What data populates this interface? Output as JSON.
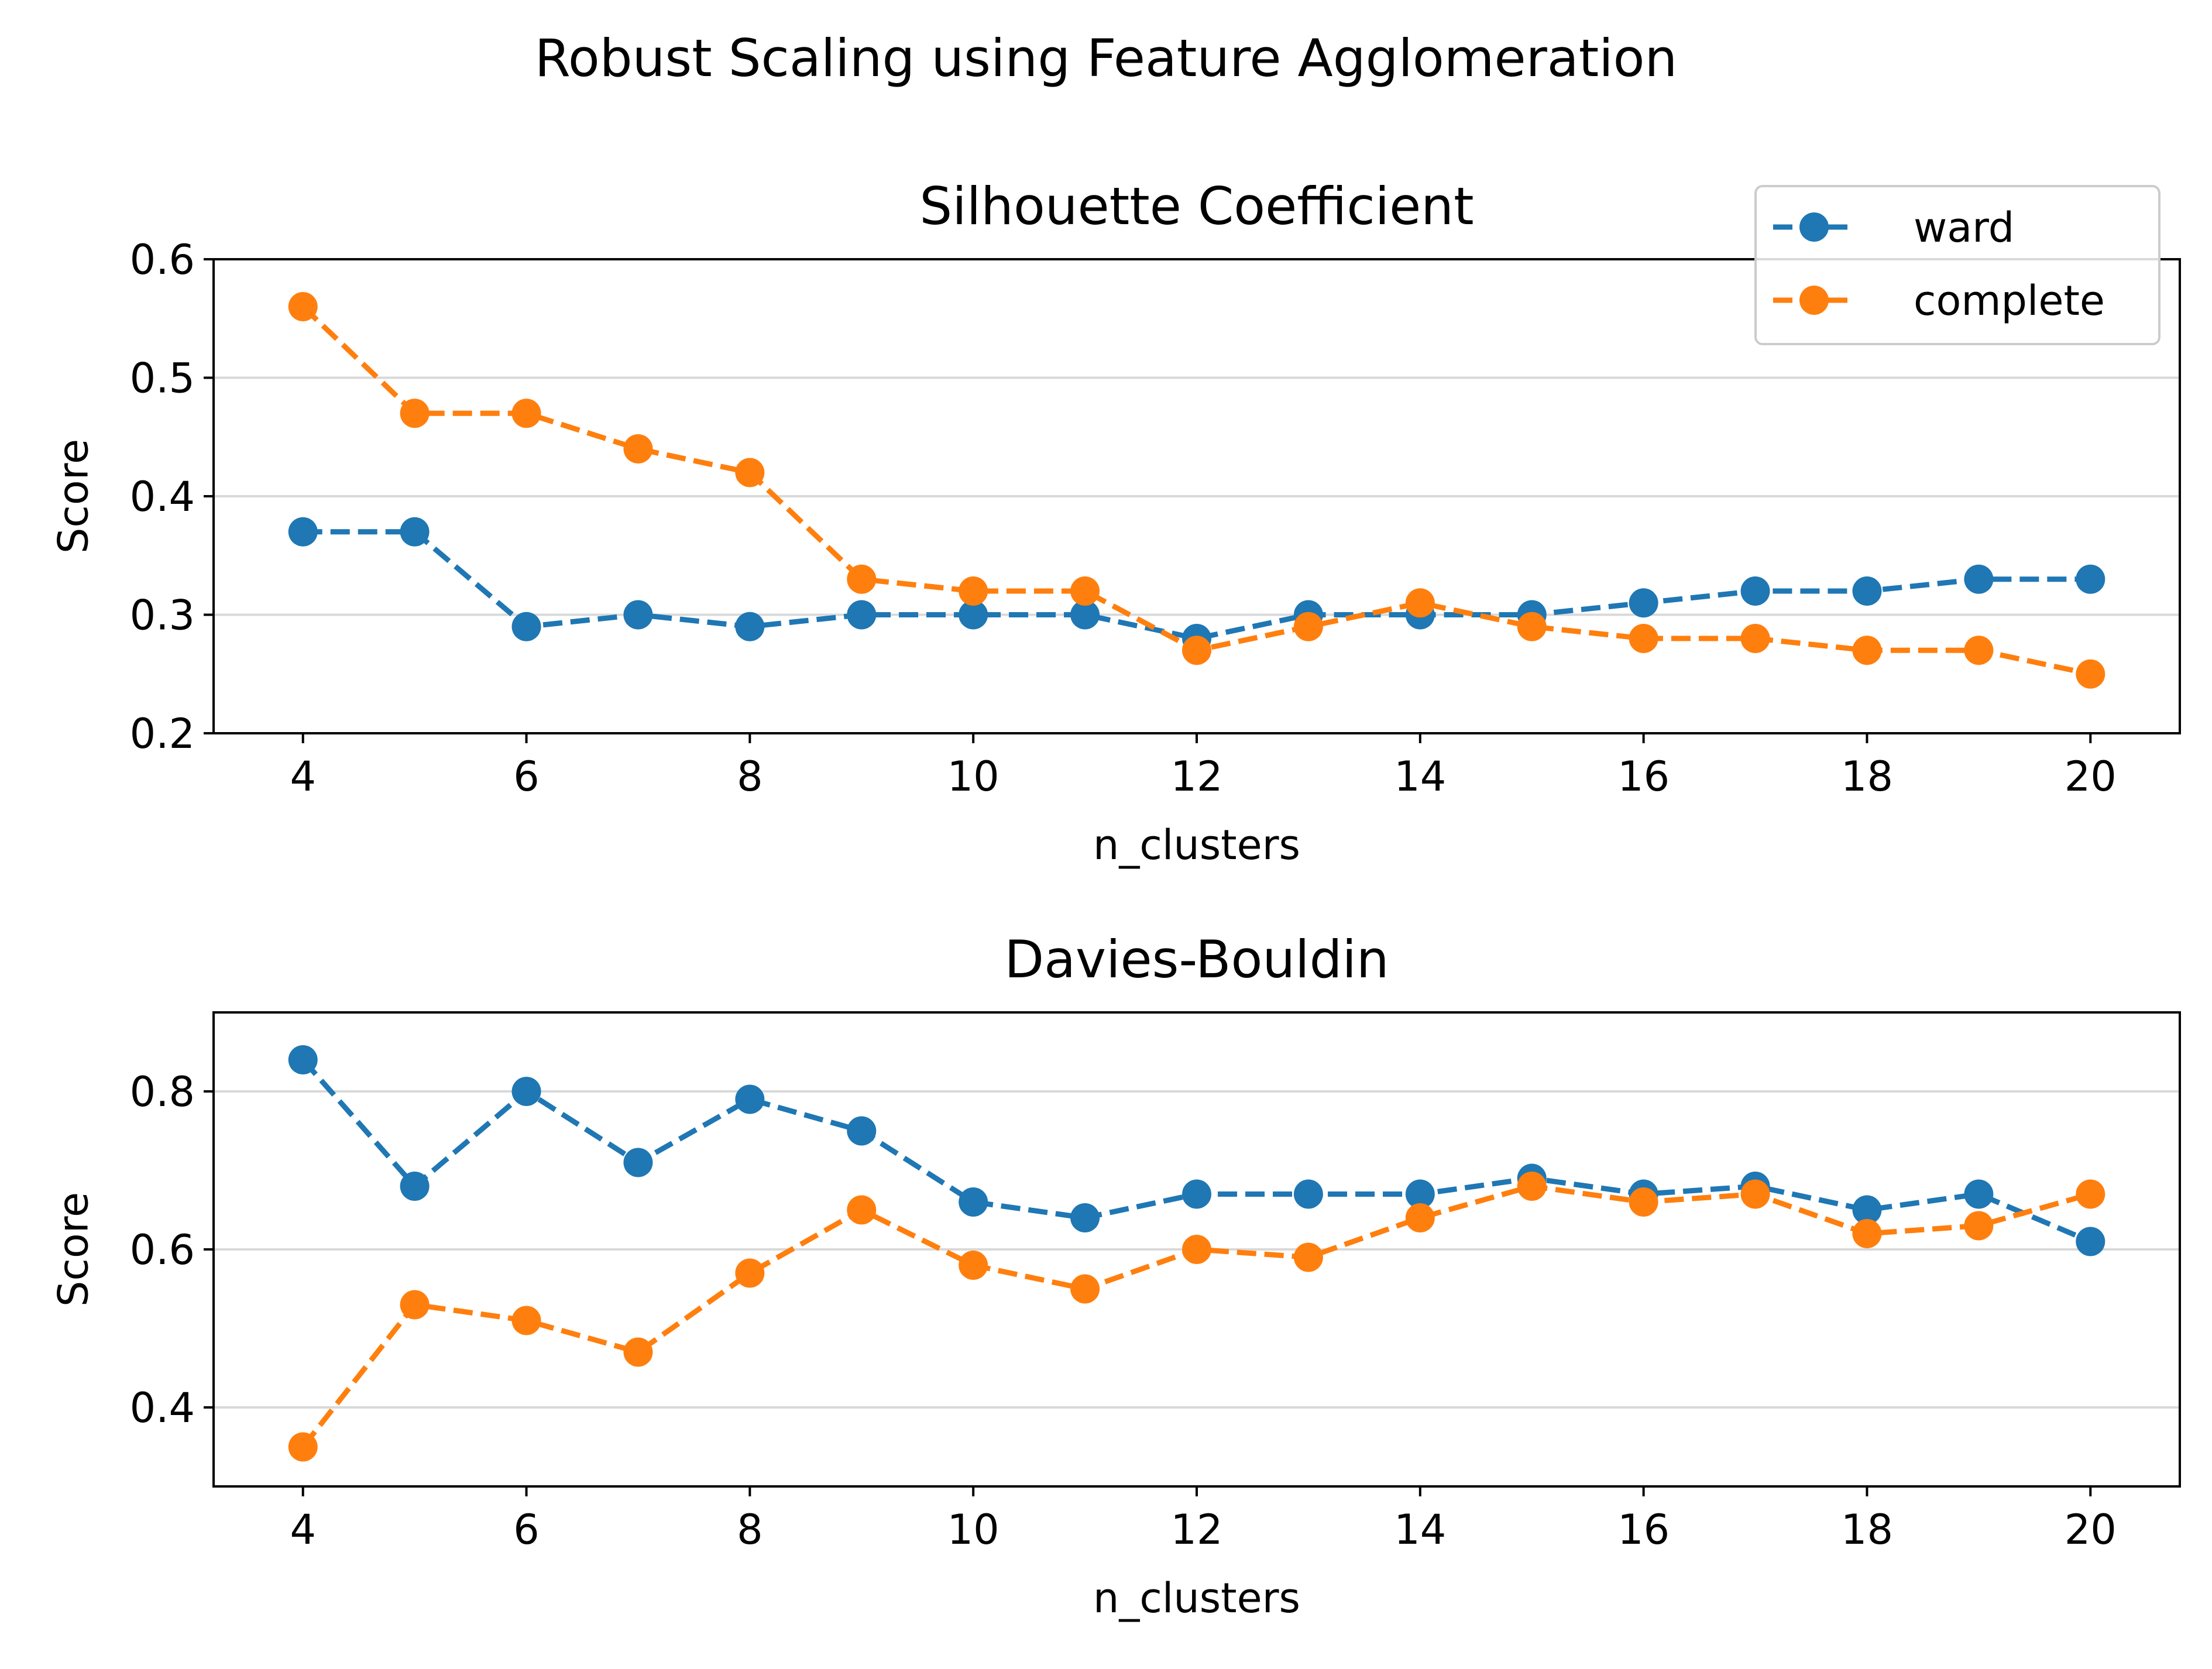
{
  "suptitle": "Robust Scaling using Feature Agglomeration",
  "series_colors": {
    "ward": "#1f77b4",
    "complete": "#ff7f0e"
  },
  "chart_data": [
    {
      "type": "line",
      "title": "Silhouette Coefficient",
      "xlabel": "n_clusters",
      "ylabel": "Score",
      "xlim": [
        3.2,
        20.8
      ],
      "ylim": [
        0.2,
        0.6
      ],
      "xticks": [
        4,
        6,
        8,
        10,
        12,
        14,
        16,
        18,
        20
      ],
      "yticks": [
        0.2,
        0.3,
        0.4,
        0.5,
        0.6
      ],
      "ytick_labels": [
        "0.2",
        "0.3",
        "0.4",
        "0.5",
        "0.6"
      ],
      "grid": "horizontal",
      "legend": "top-right",
      "x": [
        4,
        5,
        6,
        7,
        8,
        9,
        10,
        11,
        12,
        13,
        14,
        15,
        16,
        17,
        18,
        19,
        20
      ],
      "series": [
        {
          "name": "ward",
          "values": [
            0.37,
            0.37,
            0.29,
            0.3,
            0.29,
            0.3,
            0.3,
            0.3,
            0.28,
            0.3,
            0.3,
            0.3,
            0.31,
            0.32,
            0.32,
            0.33,
            0.33
          ]
        },
        {
          "name": "complete",
          "values": [
            0.56,
            0.47,
            0.47,
            0.44,
            0.42,
            0.33,
            0.32,
            0.32,
            0.27,
            0.29,
            0.31,
            0.29,
            0.28,
            0.28,
            0.27,
            0.27,
            0.25
          ]
        }
      ]
    },
    {
      "type": "line",
      "title": "Davies-Bouldin",
      "xlabel": "n_clusters",
      "ylabel": "Score",
      "xlim": [
        3.2,
        20.8
      ],
      "ylim": [
        0.3,
        0.9
      ],
      "xticks": [
        4,
        6,
        8,
        10,
        12,
        14,
        16,
        18,
        20
      ],
      "yticks": [
        0.4,
        0.6,
        0.8
      ],
      "ytick_labels": [
        "0.4",
        "0.6",
        "0.8"
      ],
      "grid": "horizontal",
      "legend": "none",
      "x": [
        4,
        5,
        6,
        7,
        8,
        9,
        10,
        11,
        12,
        13,
        14,
        15,
        16,
        17,
        18,
        19,
        20
      ],
      "series": [
        {
          "name": "ward",
          "values": [
            0.84,
            0.68,
            0.8,
            0.71,
            0.79,
            0.75,
            0.66,
            0.64,
            0.67,
            0.67,
            0.67,
            0.69,
            0.67,
            0.68,
            0.65,
            0.67,
            0.61
          ]
        },
        {
          "name": "complete",
          "values": [
            0.35,
            0.53,
            0.51,
            0.47,
            0.57,
            0.65,
            0.58,
            0.55,
            0.6,
            0.59,
            0.64,
            0.68,
            0.66,
            0.67,
            0.62,
            0.63,
            0.67
          ]
        }
      ]
    }
  ]
}
